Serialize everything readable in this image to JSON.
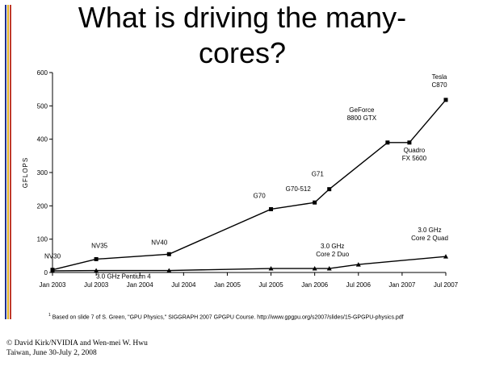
{
  "slide": {
    "title_line1": "What is driving the many-",
    "title_line2": "cores?",
    "footnote_marker": "1",
    "footnote": "Based on slide 7 of S. Green, \"GPU Physics,\" SIGGRAPH 2007 GPGPU Course. http://www.gpgpu.org/s2007/slides/15-GPGPU-physics.pdf",
    "credit_line1": "© David Kirk/NVIDIA  and  Wen-mei W. Hwu",
    "credit_line2": "Taiwan, June 30-July 2, 2008",
    "stripe_colors": [
      "#1e2f8f",
      "#e0b020",
      "#c0392b"
    ]
  },
  "chart_data": {
    "type": "line",
    "title": "",
    "xlabel": "",
    "ylabel": "GFLOPS",
    "ylim": [
      0,
      600
    ],
    "yticks": [
      0,
      100,
      200,
      300,
      400,
      500,
      600
    ],
    "xlim": [
      "Jan 2003",
      "Jul 2007"
    ],
    "xticks": [
      "Jan 2003",
      "Jul 2003",
      "Jan 2004",
      "Jul 2004",
      "Jan 2005",
      "Jul 2005",
      "Jan 2006",
      "Jul 2006",
      "Jan 2007",
      "Jul 2007"
    ],
    "grid": false,
    "legend": "none",
    "series": [
      {
        "marker": "square",
        "points": [
          {
            "x": "2003-01",
            "y": 8,
            "label": "NV30"
          },
          {
            "x": "2003-07",
            "y": 40,
            "label": "NV35"
          },
          {
            "x": "2004-05",
            "y": 55,
            "label": "NV40"
          },
          {
            "x": "2005-07",
            "y": 190,
            "label": "G70"
          },
          {
            "x": "2006-01",
            "y": 210,
            "label": "G70-512"
          },
          {
            "x": "2006-03",
            "y": 250,
            "label": "G71"
          },
          {
            "x": "2006-11",
            "y": 390,
            "label": "GeForce 8800 GTX"
          },
          {
            "x": "2007-02",
            "y": 390,
            "label": "Quadro FX 5600"
          },
          {
            "x": "2007-07",
            "y": 518,
            "label": "Tesla C870"
          }
        ]
      },
      {
        "marker": "triangle",
        "points": [
          {
            "x": "2003-01",
            "y": 5,
            "label": ""
          },
          {
            "x": "2003-07",
            "y": 6,
            "label": "3.0 GHz Pentium 4"
          },
          {
            "x": "2004-05",
            "y": 6,
            "label": ""
          },
          {
            "x": "2005-07",
            "y": 12,
            "label": ""
          },
          {
            "x": "2006-01",
            "y": 12,
            "label": ""
          },
          {
            "x": "2006-03",
            "y": 12,
            "label": "3.0 GHz Core 2 Duo"
          },
          {
            "x": "2006-07",
            "y": 24,
            "label": ""
          },
          {
            "x": "2007-07",
            "y": 48,
            "label": "3.0 GHz Core 2 Quad"
          }
        ]
      }
    ]
  }
}
